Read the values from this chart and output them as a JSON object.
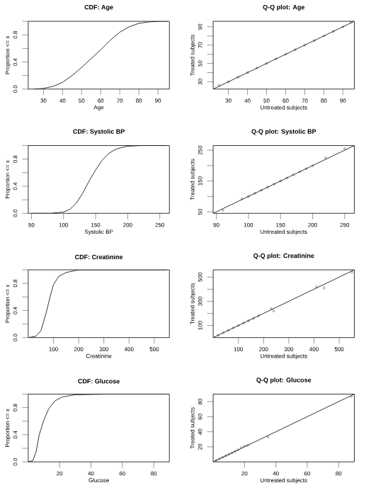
{
  "chart_data": [
    {
      "type": "line",
      "title": "CDF: Age",
      "xlabel": "Age",
      "ylabel": "Proportion <= x",
      "xlim": [
        22,
        96
      ],
      "ylim": [
        0,
        1
      ],
      "xticks": [
        30,
        40,
        50,
        60,
        70,
        80,
        90
      ],
      "yticks": [
        {
          "value": 0,
          "label": "0.0"
        },
        {
          "value": 0.2,
          "label": null
        },
        {
          "value": 0.4,
          "label": "0.4"
        },
        {
          "value": 0.6,
          "label": null
        },
        {
          "value": 0.8,
          "label": "0.8"
        },
        {
          "value": 1,
          "label": null
        }
      ],
      "marker": "none",
      "series": [
        {
          "color": "#000000",
          "x": [
            25,
            30,
            35,
            40,
            45,
            50,
            55,
            60,
            65,
            70,
            75,
            80,
            85,
            90,
            95
          ],
          "values": [
            0,
            0.01,
            0.04,
            0.1,
            0.2,
            0.32,
            0.45,
            0.58,
            0.72,
            0.84,
            0.92,
            0.97,
            0.99,
            1,
            1
          ]
        }
      ]
    },
    {
      "type": "scatter",
      "title": "Q-Q plot: Age",
      "xlabel": "Untreated subjects",
      "ylabel": "Treated subjects",
      "xlim": [
        22,
        96
      ],
      "ylim": [
        22,
        96
      ],
      "xticks": [
        30,
        40,
        50,
        60,
        70,
        80,
        90
      ],
      "yticks": [
        30,
        {
          "value": 40,
          "label": null
        },
        50,
        {
          "value": 60,
          "label": null
        },
        70,
        {
          "value": 80,
          "label": null
        },
        90
      ],
      "series": [
        {
          "marker": "circle",
          "color": "#000000",
          "x": [
            25,
            30,
            35,
            40,
            45,
            50,
            55,
            60,
            65,
            70,
            75,
            80,
            85,
            90,
            94
          ],
          "values": [
            26,
            30,
            35,
            40,
            45,
            50,
            55,
            60,
            65,
            70,
            75,
            80,
            85,
            90,
            95
          ]
        },
        {
          "type": "line",
          "marker": "none",
          "color": "#000000",
          "x": [
            22,
            96
          ],
          "values": [
            22,
            96
          ]
        }
      ]
    },
    {
      "type": "line",
      "title": "CDF: Systolic BP",
      "xlabel": "Systolic BP",
      "ylabel": "Proportion <= x",
      "xlim": [
        45,
        265
      ],
      "ylim": [
        0,
        1
      ],
      "xticks": [
        50,
        100,
        150,
        200,
        250
      ],
      "yticks": [
        {
          "value": 0,
          "label": "0.0"
        },
        {
          "value": 0.2,
          "label": null
        },
        {
          "value": 0.4,
          "label": "0.4"
        },
        {
          "value": 0.6,
          "label": null
        },
        {
          "value": 0.8,
          "label": "0.8"
        },
        {
          "value": 1,
          "label": null
        }
      ],
      "marker": "none",
      "series": [
        {
          "color": "#000000",
          "x": [
            50,
            80,
            100,
            110,
            120,
            130,
            140,
            150,
            160,
            170,
            180,
            190,
            200,
            220,
            260
          ],
          "values": [
            0,
            0,
            0.02,
            0.06,
            0.15,
            0.3,
            0.48,
            0.64,
            0.78,
            0.88,
            0.94,
            0.97,
            0.99,
            1,
            1
          ]
        }
      ]
    },
    {
      "type": "scatter",
      "title": "Q-Q plot: Systolic BP",
      "xlabel": "Untreated subjects",
      "ylabel": "Treated subjects",
      "xlim": [
        45,
        265
      ],
      "ylim": [
        45,
        265
      ],
      "xticks": [
        50,
        100,
        150,
        200,
        250
      ],
      "yticks": [
        50,
        {
          "value": 100,
          "label": null
        },
        150,
        {
          "value": 200,
          "label": null
        },
        250
      ],
      "series": [
        {
          "marker": "circle",
          "color": "#000000",
          "x": [
            60,
            90,
            100,
            110,
            120,
            130,
            140,
            150,
            160,
            170,
            180,
            190,
            200,
            220,
            250
          ],
          "values": [
            55,
            92,
            100,
            110,
            120,
            130,
            140,
            150,
            160,
            170,
            180,
            190,
            200,
            225,
            255
          ]
        },
        {
          "type": "line",
          "marker": "none",
          "color": "#000000",
          "x": [
            45,
            265
          ],
          "values": [
            45,
            265
          ]
        }
      ]
    },
    {
      "type": "line",
      "title": "CDF: Creatinine",
      "xlabel": "Creatinine",
      "ylabel": "Proportion <= x",
      "xlim": [
        0,
        560
      ],
      "ylim": [
        0,
        1
      ],
      "xticks": [
        100,
        200,
        300,
        400,
        500
      ],
      "yticks": [
        {
          "value": 0,
          "label": "0.0"
        },
        {
          "value": 0.2,
          "label": null
        },
        {
          "value": 0.4,
          "label": "0.4"
        },
        {
          "value": 0.6,
          "label": null
        },
        {
          "value": 0.8,
          "label": "0.8"
        },
        {
          "value": 1,
          "label": null
        }
      ],
      "marker": "none",
      "series": [
        {
          "color": "#000000",
          "x": [
            0,
            30,
            50,
            70,
            80,
            90,
            100,
            120,
            150,
            200,
            550
          ],
          "values": [
            0,
            0.02,
            0.1,
            0.35,
            0.5,
            0.65,
            0.78,
            0.9,
            0.96,
            1,
            1
          ]
        }
      ]
    },
    {
      "type": "scatter",
      "title": "Q-Q plot: Creatinine",
      "xlabel": "Untreated subjects",
      "ylabel": "Treated subjects",
      "xlim": [
        0,
        560
      ],
      "ylim": [
        0,
        560
      ],
      "xticks": [
        100,
        200,
        300,
        400,
        500
      ],
      "yticks": [
        100,
        {
          "value": 200,
          "label": null
        },
        300,
        {
          "value": 400,
          "label": null
        },
        500
      ],
      "series": [
        {
          "marker": "circle",
          "color": "#000000",
          "x": [
            20,
            40,
            60,
            80,
            100,
            120,
            140,
            160,
            180,
            230,
            240,
            410,
            440,
            550
          ],
          "values": [
            20,
            40,
            60,
            80,
            100,
            120,
            140,
            160,
            180,
            240,
            220,
            420,
            410,
            540
          ]
        },
        {
          "type": "line",
          "marker": "none",
          "color": "#000000",
          "x": [
            0,
            560
          ],
          "values": [
            0,
            560
          ]
        }
      ]
    },
    {
      "type": "line",
      "title": "CDF: Glucose",
      "xlabel": "Glucose",
      "ylabel": "Proportion <= x",
      "xlim": [
        0,
        90
      ],
      "ylim": [
        0,
        1
      ],
      "xticks": [
        20,
        40,
        60,
        80
      ],
      "yticks": [
        {
          "value": 0,
          "label": "0.0"
        },
        {
          "value": 0.2,
          "label": null
        },
        {
          "value": 0.4,
          "label": "0.4"
        },
        {
          "value": 0.6,
          "label": null
        },
        {
          "value": 0.8,
          "label": "0.8"
        },
        {
          "value": 1,
          "label": null
        }
      ],
      "marker": "none",
      "series": [
        {
          "color": "#000000",
          "x": [
            0,
            3,
            5,
            7,
            10,
            13,
            17,
            22,
            30,
            50,
            88
          ],
          "values": [
            0,
            0.02,
            0.15,
            0.4,
            0.62,
            0.78,
            0.9,
            0.96,
            0.99,
            1,
            1
          ]
        }
      ]
    },
    {
      "type": "scatter",
      "title": "Q-Q plot: Glucose",
      "xlabel": "Untreated subjects",
      "ylabel": "Treated subjects",
      "xlim": [
        0,
        90
      ],
      "ylim": [
        0,
        90
      ],
      "xticks": [
        20,
        40,
        60,
        80
      ],
      "yticks": [
        20,
        40,
        60,
        80
      ],
      "series": [
        {
          "marker": "circle",
          "color": "#000000",
          "x": [
            2,
            4,
            6,
            8,
            10,
            12,
            14,
            16,
            18,
            20,
            22,
            35,
            88
          ],
          "values": [
            2,
            4,
            6,
            8,
            10,
            12,
            14,
            16,
            19,
            21,
            22,
            33,
            87
          ]
        },
        {
          "type": "line",
          "marker": "none",
          "color": "#000000",
          "x": [
            0,
            90
          ],
          "values": [
            0,
            90
          ]
        }
      ]
    }
  ]
}
